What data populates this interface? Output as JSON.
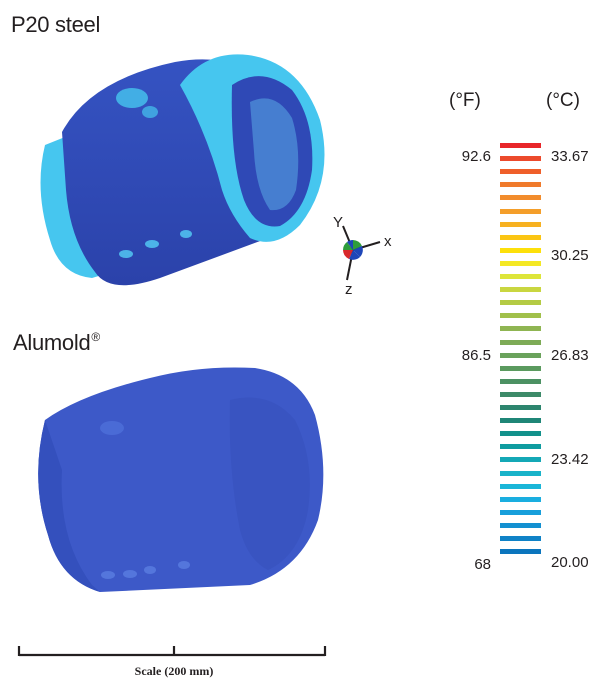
{
  "titles": {
    "p20": "P20 steel",
    "alumold": "Alumold",
    "alumold_mark": "®"
  },
  "legend": {
    "unit_f": "(°F)",
    "unit_c": "(°C)",
    "ticks_f": [
      "92.6",
      "86.5",
      "68"
    ],
    "ticks_c": [
      "33.67",
      "30.25",
      "26.83",
      "23.42",
      "20.00"
    ],
    "colors": [
      "#e8262a",
      "#ec4a2c",
      "#ef5f2a",
      "#f07a2b",
      "#f28c2c",
      "#f49e2a",
      "#f7b120",
      "#fbc513",
      "#fde00b",
      "#f4e824",
      "#dde53a",
      "#c9d640",
      "#b4cb44",
      "#a1c04a",
      "#8fb552",
      "#7dab56",
      "#6aa25b",
      "#5b9a5f",
      "#4c9163",
      "#3c8a68",
      "#2d856e",
      "#1f8677",
      "#12918b",
      "#0f9ca0",
      "#14a8b6",
      "#19b3c9",
      "#1ab6d8",
      "#1aaee0",
      "#179fdb",
      "#1390d1",
      "#0f82c7",
      "#0b75bd"
    ]
  },
  "axes": {
    "y": "Y",
    "x": "x",
    "z": "z"
  },
  "scale": {
    "label": "Scale (200 mm)"
  },
  "colors": {
    "part_dark": "#2c45b0",
    "part_mid": "#3d59c8",
    "part_light": "#46c6ef",
    "text": "#231f20"
  }
}
